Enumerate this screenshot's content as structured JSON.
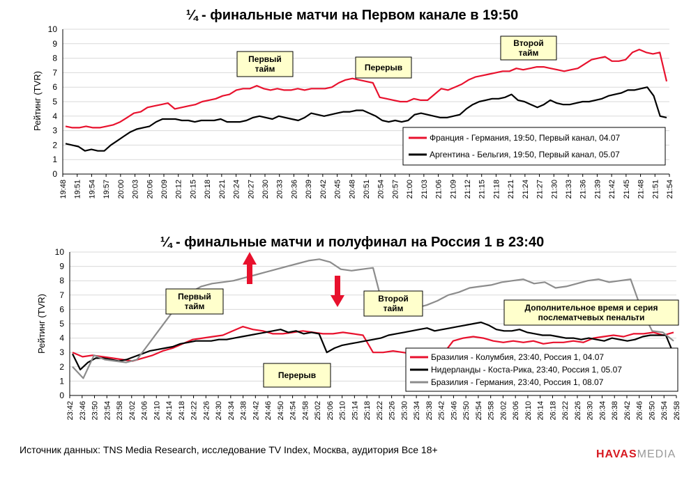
{
  "chart_data": [
    {
      "type": "line",
      "title": "¼ - финальные матчи на Первом канале в 19:50",
      "ylabel": "Рейтинг (TVR)",
      "ylim": [
        0,
        10
      ],
      "yticks": [
        0,
        1,
        2,
        3,
        4,
        5,
        6,
        7,
        8,
        9,
        10
      ],
      "xticks": [
        "19:48",
        "19:51",
        "19:54",
        "19:57",
        "20:00",
        "20:03",
        "20:06",
        "20:09",
        "20:12",
        "20:15",
        "20:18",
        "20:21",
        "20:24",
        "20:27",
        "20:30",
        "20:33",
        "20:36",
        "20:39",
        "20:42",
        "20:45",
        "20:48",
        "20:51",
        "20:54",
        "20:57",
        "21:00",
        "21:03",
        "21:06",
        "21:09",
        "21:12",
        "21:15",
        "21:18",
        "21:21",
        "21:24",
        "21:27",
        "21:30",
        "21:33",
        "21:36",
        "21:39",
        "21:42",
        "21:45",
        "21:48",
        "21:51",
        "21:54"
      ],
      "annotations": [
        {
          "text": [
            "Первый",
            "тайм"
          ],
          "x": "20:24"
        },
        {
          "text": [
            "Перерыв"
          ],
          "x": "20:54"
        },
        {
          "text": [
            "Второй",
            "тайм"
          ],
          "x": "21:39"
        }
      ],
      "series": [
        {
          "name": "Франция - Германия, 19:50, Первый канал, 04.07",
          "color": "#e8112d",
          "values": [
            3.3,
            3.2,
            3.2,
            3.3,
            3.2,
            3.2,
            3.3,
            3.4,
            3.6,
            3.9,
            4.2,
            4.3,
            4.6,
            4.7,
            4.8,
            4.9,
            4.5,
            4.6,
            4.7,
            4.8,
            5.0,
            5.1,
            5.2,
            5.4,
            5.5,
            5.8,
            5.9,
            5.9,
            6.1,
            5.9,
            5.8,
            5.9,
            5.8,
            5.8,
            5.9,
            5.8,
            5.9,
            5.9,
            5.9,
            6.0,
            6.3,
            6.5,
            6.6,
            6.5,
            6.4,
            6.3,
            5.3,
            5.2,
            5.1,
            5.0,
            5.0,
            5.2,
            5.1,
            5.1,
            5.5,
            5.9,
            5.8,
            6.0,
            6.2,
            6.5,
            6.7,
            6.8,
            6.9,
            7.0,
            7.1,
            7.1,
            7.3,
            7.2,
            7.3,
            7.4,
            7.4,
            7.3,
            7.2,
            7.1,
            7.2,
            7.3,
            7.6,
            7.9,
            8.0,
            8.1,
            7.8,
            7.8,
            7.9,
            8.4,
            8.6,
            8.4,
            8.3,
            8.4,
            6.4
          ]
        },
        {
          "name": "Аргентина - Бельгия, 19:50, Первый канал, 05.07",
          "color": "#000000",
          "values": [
            2.1,
            2.0,
            1.9,
            1.6,
            1.7,
            1.6,
            1.6,
            2.0,
            2.3,
            2.6,
            2.9,
            3.1,
            3.2,
            3.3,
            3.6,
            3.8,
            3.8,
            3.8,
            3.7,
            3.7,
            3.6,
            3.7,
            3.7,
            3.7,
            3.8,
            3.6,
            3.6,
            3.6,
            3.7,
            3.9,
            4.0,
            3.9,
            3.8,
            4.0,
            3.9,
            3.8,
            3.7,
            3.9,
            4.2,
            4.1,
            4.0,
            4.1,
            4.2,
            4.3,
            4.3,
            4.4,
            4.4,
            4.2,
            4.0,
            3.7,
            3.6,
            3.7,
            3.6,
            3.7,
            4.1,
            4.2,
            4.1,
            4.0,
            3.9,
            3.9,
            4.0,
            4.1,
            4.5,
            4.8,
            5.0,
            5.1,
            5.2,
            5.2,
            5.3,
            5.5,
            5.1,
            5.0,
            4.8,
            4.6,
            4.8,
            5.1,
            4.9,
            4.8,
            4.8,
            4.9,
            5.0,
            5.0,
            5.1,
            5.2,
            5.4,
            5.5,
            5.6,
            5.8,
            5.8,
            5.9,
            6.0,
            5.4,
            4.0,
            3.9
          ]
        }
      ]
    },
    {
      "type": "line",
      "title": "¼ - финальные матчи и полуфинал на Россия 1 в 23:40",
      "ylabel": "Рейтинг (TVR)",
      "ylim": [
        0,
        10
      ],
      "yticks": [
        0,
        1,
        2,
        3,
        4,
        5,
        6,
        7,
        8,
        9,
        10
      ],
      "xticks": [
        "23:42",
        "23:46",
        "23:50",
        "23:54",
        "23:58",
        "24:02",
        "24:06",
        "24:10",
        "24:14",
        "24:18",
        "24:22",
        "24:26",
        "24:30",
        "24:34",
        "24:38",
        "24:42",
        "24:46",
        "24:50",
        "24:54",
        "24:58",
        "25:02",
        "25:06",
        "25:10",
        "25:14",
        "25:18",
        "25:22",
        "25:26",
        "25:30",
        "25:34",
        "25:38",
        "25:42",
        "25:46",
        "25:50",
        "25:54",
        "25:58",
        "26:02",
        "26:06",
        "26:10",
        "26:14",
        "26:18",
        "26:22",
        "26:26",
        "26:30",
        "26:34",
        "26:38",
        "26:42",
        "26:46",
        "26:50",
        "26:54",
        "26:58"
      ],
      "annotations": [
        {
          "text": [
            "Первый",
            "тайм"
          ],
          "x": "24:22"
        },
        {
          "text": [
            "Перерыв"
          ],
          "x": "24:54"
        },
        {
          "text": [
            "Второй",
            "тайм"
          ],
          "x": "25:38"
        },
        {
          "text": [
            "Дополнительное время и серия",
            "послематчевых пенальти"
          ],
          "x": "26:22"
        }
      ],
      "series": [
        {
          "name": "Бразилия - Колумбия, 23:40, Россия 1, 04.07",
          "color": "#e8112d",
          "values": [
            3.0,
            2.7,
            2.8,
            2.7,
            2.6,
            2.5,
            2.4,
            2.6,
            2.8,
            3.1,
            3.3,
            3.6,
            3.9,
            4.0,
            4.1,
            4.2,
            4.5,
            4.8,
            4.6,
            4.5,
            4.3,
            4.3,
            4.4,
            4.5,
            4.4,
            4.3,
            4.3,
            4.4,
            4.3,
            4.2,
            3.0,
            3.0,
            3.1,
            3.0,
            2.9,
            2.8,
            2.8,
            2.9,
            3.8,
            4.0,
            4.1,
            4.0,
            3.8,
            3.7,
            3.8,
            3.7,
            3.8,
            3.6,
            3.7,
            3.7,
            3.8,
            3.7,
            4.0,
            4.1,
            4.2,
            4.1,
            4.3,
            4.3,
            4.4,
            4.2,
            4.4
          ]
        },
        {
          "name": "Нидерланды - Коста-Рика, 23:40, Россия 1, 05.07",
          "color": "#000000",
          "values": [
            2.9,
            1.8,
            2.3,
            2.6,
            2.6,
            2.5,
            2.4,
            2.5,
            2.7,
            2.9,
            3.1,
            3.2,
            3.3,
            3.4,
            3.6,
            3.7,
            3.8,
            3.8,
            3.8,
            3.9,
            3.9,
            4.0,
            4.1,
            4.2,
            4.3,
            4.4,
            4.5,
            4.6,
            4.4,
            4.5,
            4.3,
            4.4,
            4.3,
            3.0,
            3.3,
            3.5,
            3.6,
            3.7,
            3.8,
            3.9,
            4.0,
            4.2,
            4.3,
            4.4,
            4.5,
            4.6,
            4.7,
            4.5,
            4.6,
            4.7,
            4.8,
            4.9,
            5.0,
            5.1,
            4.9,
            4.6,
            4.5,
            4.5,
            4.6,
            4.4,
            4.3,
            4.2,
            4.2,
            4.1,
            4.0,
            4.0,
            3.9,
            4.0,
            3.9,
            3.8,
            4.0,
            3.9,
            3.8,
            3.9,
            4.1,
            4.2,
            4.2,
            4.2,
            2.9
          ]
        },
        {
          "name": "Бразилия - Германия, 23:40, Россия 1, 08.07",
          "color": "#8c8c8c",
          "values": [
            2.0,
            1.2,
            2.8,
            2.5,
            2.4,
            2.3,
            2.5,
            3.5,
            4.5,
            5.5,
            6.5,
            7.2,
            7.6,
            7.8,
            7.9,
            8.0,
            8.2,
            8.4,
            8.6,
            8.8,
            9.0,
            9.2,
            9.4,
            9.5,
            9.3,
            8.8,
            8.7,
            8.8,
            8.9,
            6.0,
            5.6,
            6.0,
            6.1,
            6.3,
            6.6,
            7.0,
            7.2,
            7.5,
            7.6,
            7.7,
            7.9,
            8.0,
            8.1,
            7.8,
            7.9,
            7.5,
            7.6,
            7.8,
            8.0,
            8.1,
            7.9,
            8.0,
            8.1,
            6.0,
            4.5,
            4.4,
            3.8
          ]
        }
      ]
    }
  ],
  "footer": {
    "source": "Источник данных: TNS Media Research, исследование TV Index, Москва, аудитория Все 18+",
    "logo_main": "HAVAS",
    "logo_sub": "MEDIA"
  }
}
